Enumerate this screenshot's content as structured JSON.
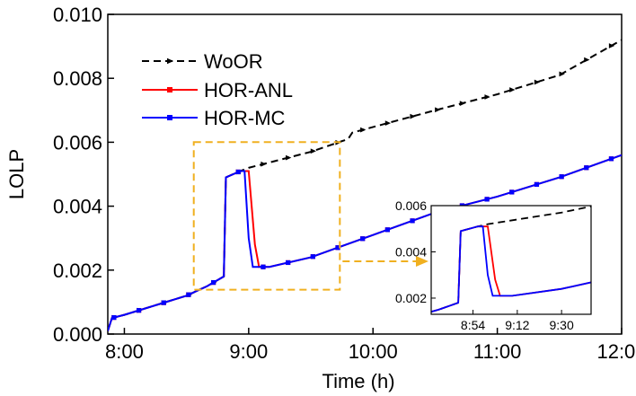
{
  "chart_data": {
    "type": "line",
    "title": "",
    "xlabel": "Time (h)",
    "ylabel": "LOLP",
    "x_unit": "hours",
    "xlim": [
      "7:52",
      "12:00"
    ],
    "ylim": [
      0,
      0.01
    ],
    "x_ticks": [
      {
        "value": "8:00",
        "label": "8:00"
      },
      {
        "value": "9:00",
        "label": "9:00"
      },
      {
        "value": "10:00",
        "label": "10:00"
      },
      {
        "value": "11:00",
        "label": "11:00"
      },
      {
        "value": "12:00",
        "label": "12:00"
      }
    ],
    "y_ticks": [
      {
        "value": 0,
        "label": "0.000"
      },
      {
        "value": 0.002,
        "label": "0.002"
      },
      {
        "value": 0.004,
        "label": "0.004"
      },
      {
        "value": 0.006,
        "label": "0.006"
      },
      {
        "value": 0.008,
        "label": "0.008"
      },
      {
        "value": 0.01,
        "label": "0.010"
      }
    ],
    "grid": false,
    "legend_position": "top-left",
    "series": [
      {
        "name": "WoOR",
        "color": "#000000",
        "style": "dashed",
        "marker": "triangle-right",
        "points": [
          [
            "7:52",
            0.0001
          ],
          [
            "7:54",
            0.0005
          ],
          [
            "8:00",
            0.0006
          ],
          [
            "8:30",
            0.0012
          ],
          [
            "8:40",
            0.0015
          ],
          [
            "8:48",
            0.0018
          ],
          [
            "8:49",
            0.0049
          ],
          [
            "8:56",
            0.0051
          ],
          [
            "9:00",
            0.0052
          ],
          [
            "9:30",
            0.0057
          ],
          [
            "9:48",
            0.0061
          ],
          [
            "9:50",
            0.0063
          ],
          [
            "10:30",
            0.007
          ],
          [
            "11:00",
            0.0075
          ],
          [
            "11:30",
            0.0081
          ],
          [
            "12:00",
            0.0092
          ]
        ]
      },
      {
        "name": "HOR-ANL",
        "color": "#ff0000",
        "style": "solid",
        "marker": "square",
        "points": [
          [
            "7:52",
            0.0001
          ],
          [
            "7:54",
            0.0005
          ],
          [
            "8:00",
            0.0006
          ],
          [
            "8:30",
            0.0012
          ],
          [
            "8:40",
            0.0015
          ],
          [
            "8:48",
            0.0018
          ],
          [
            "8:49",
            0.0049
          ],
          [
            "8:56",
            0.0051
          ],
          [
            "9:00",
            0.0051
          ],
          [
            "9:03",
            0.0028
          ],
          [
            "9:05",
            0.0021
          ],
          [
            "9:10",
            0.0021
          ],
          [
            "9:30",
            0.0024
          ],
          [
            "10:00",
            0.0031
          ],
          [
            "10:30",
            0.0038
          ],
          [
            "11:00",
            0.0043
          ],
          [
            "11:30",
            0.0049
          ],
          [
            "12:00",
            0.0056
          ]
        ]
      },
      {
        "name": "HOR-MC",
        "color": "#0000ff",
        "style": "solid",
        "marker": "square",
        "points": [
          [
            "7:52",
            0.0001
          ],
          [
            "7:54",
            0.0005
          ],
          [
            "8:00",
            0.0006
          ],
          [
            "8:30",
            0.0012
          ],
          [
            "8:40",
            0.0015
          ],
          [
            "8:48",
            0.0018
          ],
          [
            "8:49",
            0.0049
          ],
          [
            "8:56",
            0.0051
          ],
          [
            "8:58",
            0.0051
          ],
          [
            "9:00",
            0.003
          ],
          [
            "9:02",
            0.0021
          ],
          [
            "9:10",
            0.0021
          ],
          [
            "9:30",
            0.0024
          ],
          [
            "10:00",
            0.0031
          ],
          [
            "10:30",
            0.0038
          ],
          [
            "11:00",
            0.0043
          ],
          [
            "11:30",
            0.0049
          ],
          [
            "12:00",
            0.0056
          ]
        ]
      }
    ],
    "inset": {
      "xlim": [
        "8:37",
        "9:42"
      ],
      "ylim": [
        0.0013,
        0.006
      ],
      "x_ticks": [
        {
          "value": "8:54",
          "label": "8:54"
        },
        {
          "value": "9:12",
          "label": "9:12"
        },
        {
          "value": "9:30",
          "label": "9:30"
        }
      ],
      "y_ticks": [
        {
          "value": 0.002,
          "label": "0.002"
        },
        {
          "value": 0.004,
          "label": "0.004"
        },
        {
          "value": 0.006,
          "label": "0.006"
        }
      ]
    },
    "annotations": [
      {
        "type": "dashed-rectangle",
        "color": "#f0b020",
        "x_range": [
          "8:40",
          "9:44"
        ],
        "y_range": [
          0.0015,
          0.0055
        ]
      },
      {
        "type": "arrow",
        "color": "#f0b020",
        "from": "zoom-box",
        "to": "inset"
      }
    ]
  }
}
